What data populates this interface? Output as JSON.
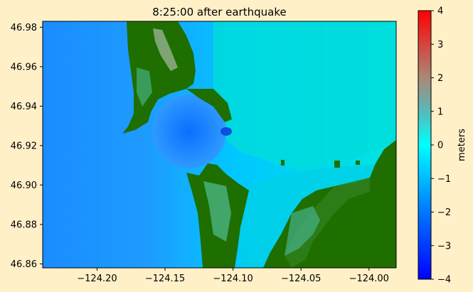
{
  "chart_data": {
    "type": "heatmap",
    "title": "8:25:00 after earthquake",
    "xlabel": "",
    "ylabel": "",
    "xlim": [
      -124.24,
      -123.98
    ],
    "ylim": [
      46.858,
      46.983
    ],
    "x_ticks": [
      -124.2,
      -124.15,
      -124.1,
      -124.05,
      -124.0
    ],
    "x_tick_labels": [
      "−124.20",
      "−124.15",
      "−124.10",
      "−124.05",
      "−124.00"
    ],
    "y_ticks": [
      46.86,
      46.88,
      46.9,
      46.92,
      46.94,
      46.96,
      46.98
    ],
    "y_tick_labels": [
      "46.86",
      "46.88",
      "46.90",
      "46.92",
      "46.94",
      "46.96",
      "46.98"
    ],
    "colorbar": {
      "label": "meters",
      "range": [
        -4,
        4
      ],
      "ticks": [
        -4,
        -3,
        -2,
        -1,
        0,
        1,
        2,
        3,
        4
      ],
      "tick_labels": [
        "−4",
        "−3",
        "−2",
        "−1",
        "0",
        "1",
        "2",
        "3",
        "4"
      ],
      "colormap": [
        "#0000ff",
        "#0077ff",
        "#00ffff",
        "#55bbbb",
        "#aa8877",
        "#ff0000"
      ]
    },
    "colors": {
      "water_offshore": "#1a8cff",
      "water_nearshore": "#00c8ff",
      "water_bay": "#00e0e0",
      "land": "#1f6e00"
    }
  }
}
